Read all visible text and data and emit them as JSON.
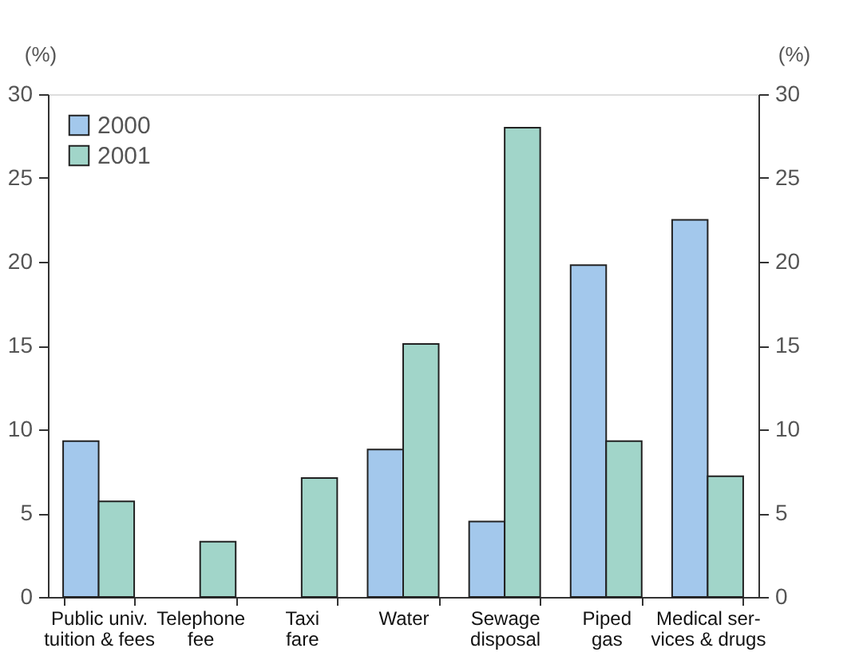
{
  "chart_data": {
    "type": "bar",
    "categories": [
      "Public univ.\ntuition & fees",
      "Telephone\nfee",
      "Taxi\nfare",
      "Water",
      "Sewage\ndisposal",
      "Piped\ngas",
      "Medical ser-\nvices & drugs"
    ],
    "series": [
      {
        "name": "2000",
        "color": "#a3c8ec",
        "values": [
          9.3,
          null,
          null,
          8.8,
          4.5,
          19.8,
          22.5
        ]
      },
      {
        "name": "2001",
        "color": "#a1d5c9",
        "values": [
          5.7,
          3.3,
          7.1,
          15.1,
          28.0,
          9.3,
          7.2
        ]
      }
    ],
    "ylabel": "(%)",
    "y2label": "(%)",
    "ylim": [
      0,
      30
    ],
    "yticks": [
      0,
      5,
      10,
      15,
      20,
      25,
      30
    ],
    "y2lim": [
      0,
      30
    ],
    "y2ticks": [
      0,
      5,
      10,
      15,
      20,
      25,
      30
    ],
    "legend": "top left",
    "grid": false
  }
}
